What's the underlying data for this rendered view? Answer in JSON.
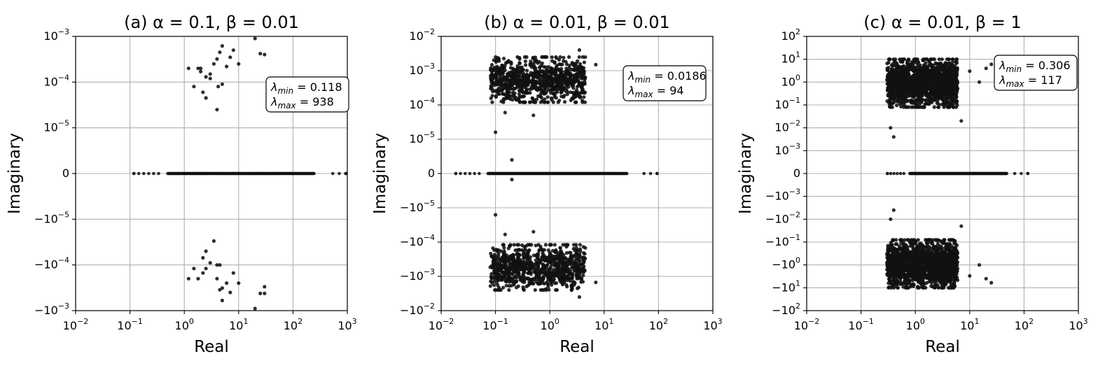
{
  "chart_data": [
    {
      "type": "scatter",
      "title": "(a)  α = 0.1, β = 0.01",
      "xlabel": "Real",
      "ylabel": "Imaginary",
      "x_scale": "log",
      "y_scale": "symlog",
      "xlim": [
        0.01,
        1000
      ],
      "ylim": [
        -0.001,
        0.001
      ],
      "x_ticks": [
        "10^-2",
        "10^-1",
        "10^0",
        "10^1",
        "10^2",
        "10^3"
      ],
      "y_ticks": [
        "10^-3",
        "10^-4",
        "10^-5",
        "0",
        "−10^-5",
        "−10^-4",
        "−10^-3"
      ],
      "grid": true,
      "annotation": {
        "position": "right",
        "lines": [
          [
            "λ",
            "min",
            " = 0.118"
          ],
          [
            "λ",
            "max",
            " = 938"
          ]
        ]
      },
      "lambda_min": 0.118,
      "lambda_max": 938,
      "real_axis_points": {
        "x_range": [
          0.118,
          938
        ],
        "y": 0
      },
      "points": [
        [
          1.2,
          0.0002
        ],
        [
          1.8,
          0.0002
        ],
        [
          2.0,
          0.00017
        ],
        [
          2.5,
          0.00013
        ],
        [
          3.0,
          0.00012
        ],
        [
          3.5,
          0.00025
        ],
        [
          4.0,
          0.00032
        ],
        [
          4.5,
          0.00045
        ],
        [
          5.0,
          0.00062
        ],
        [
          6.0,
          0.00022
        ],
        [
          8.0,
          0.0005
        ],
        [
          10.0,
          0.00025
        ],
        [
          20.0,
          0.0009
        ],
        [
          25.0,
          0.00042
        ],
        [
          30.0,
          0.0004
        ],
        [
          1.5,
          8e-05
        ],
        [
          2.2,
          6e-05
        ],
        [
          2.5,
          4.5e-05
        ],
        [
          4.0,
          2.5e-05
        ],
        [
          5.0,
          9e-05
        ],
        [
          3.0,
          0.00015
        ],
        [
          7.0,
          0.00035
        ],
        [
          2.0,
          0.0002
        ],
        [
          4.2,
          8e-05
        ],
        [
          1.2,
          -0.0002
        ],
        [
          1.5,
          -0.00012
        ],
        [
          1.8,
          -0.0002
        ],
        [
          2.2,
          -0.00015
        ],
        [
          2.5,
          -0.00012
        ],
        [
          2.2,
          -7e-05
        ],
        [
          3.0,
          -9e-05
        ],
        [
          3.5,
          -3e-05
        ],
        [
          4.0,
          -0.0001
        ],
        [
          4.5,
          -0.0001
        ],
        [
          4.0,
          -0.0002
        ],
        [
          5.0,
          -0.00032
        ],
        [
          5.0,
          -0.0006
        ],
        [
          6.0,
          -0.00025
        ],
        [
          7.0,
          -0.0004
        ],
        [
          8.0,
          -0.00015
        ],
        [
          10.0,
          -0.00025
        ],
        [
          20.0,
          -0.0009
        ],
        [
          25.0,
          -0.00042
        ],
        [
          30.0,
          -0.0003
        ],
        [
          30.0,
          -0.00042
        ],
        [
          2.5,
          -5e-05
        ],
        [
          4.5,
          -0.00035
        ]
      ]
    },
    {
      "type": "scatter",
      "title": "(b)  α = 0.01, β = 0.01",
      "xlabel": "Real",
      "ylabel": "Imaginary",
      "x_scale": "log",
      "y_scale": "symlog",
      "xlim": [
        0.01,
        1000
      ],
      "ylim": [
        -0.01,
        0.01
      ],
      "x_ticks": [
        "10^-2",
        "10^-1",
        "10^0",
        "10^1",
        "10^2",
        "10^3"
      ],
      "y_ticks": [
        "10^-2",
        "10^-3",
        "10^-4",
        "10^-5",
        "0",
        "−10^-5",
        "−10^-4",
        "−10^-3",
        "−10^-2"
      ],
      "grid": true,
      "annotation": {
        "position": "right",
        "lines": [
          [
            "λ",
            "min",
            " = 0.0186"
          ],
          [
            "λ",
            "max",
            " = 94"
          ]
        ]
      },
      "lambda_min": 0.0186,
      "lambda_max": 94,
      "real_axis_points": {
        "x_range": [
          0.0186,
          94
        ],
        "y": 0
      },
      "clusters": [
        {
          "n": 900,
          "x_range": [
            0.08,
            4.5
          ],
          "y_range": [
            0.00012,
            0.0025
          ],
          "sign": 1
        },
        {
          "n": 900,
          "x_range": [
            0.08,
            4.5
          ],
          "y_range": [
            -0.0025,
            -0.00012
          ],
          "sign": -1
        }
      ],
      "points": [
        [
          0.1,
          1.6e-05
        ],
        [
          0.2,
          2.5e-06
        ],
        [
          0.2,
          -1.5e-06
        ],
        [
          0.1,
          -1.6e-05
        ],
        [
          3.5,
          0.004
        ],
        [
          3.5,
          -0.004
        ],
        [
          7.0,
          0.0015
        ],
        [
          7.0,
          -0.0015
        ],
        [
          0.15,
          6e-05
        ],
        [
          0.15,
          -6e-05
        ],
        [
          0.5,
          5e-05
        ],
        [
          0.5,
          -5e-05
        ]
      ]
    },
    {
      "type": "scatter",
      "title": "(c)  α = 0.01, β = 1",
      "xlabel": "Real",
      "ylabel": "Imaginary",
      "x_scale": "log",
      "y_scale": "symlog",
      "xlim": [
        0.01,
        1000
      ],
      "ylim": [
        -100,
        100
      ],
      "x_ticks": [
        "10^-2",
        "10^-1",
        "10^0",
        "10^1",
        "10^2",
        "10^3"
      ],
      "y_ticks": [
        "10^2",
        "10^1",
        "10^0",
        "10^-1",
        "10^-2",
        "10^-3",
        "0",
        "−10^-3",
        "−10^-2",
        "−10^-1",
        "−10^0",
        "−10^1",
        "−10^2"
      ],
      "grid": true,
      "annotation": {
        "position": "right",
        "lines": [
          [
            "λ",
            "min",
            " = 0.306"
          ],
          [
            "λ",
            "max",
            " = 117"
          ]
        ]
      },
      "lambda_min": 0.306,
      "lambda_max": 117,
      "real_axis_points": {
        "x_range": [
          0.306,
          117
        ],
        "y": 0
      },
      "clusters": [
        {
          "n": 1600,
          "x_range": [
            0.3,
            6
          ],
          "y_range": [
            0.08,
            10
          ],
          "sign": 1
        },
        {
          "n": 1600,
          "x_range": [
            0.3,
            6
          ],
          "y_range": [
            -10,
            -0.08
          ],
          "sign": -1
        }
      ],
      "points": [
        [
          0.4,
          0.004
        ],
        [
          0.4,
          -0.004
        ],
        [
          0.35,
          0.01
        ],
        [
          0.35,
          -0.01
        ],
        [
          7.0,
          0.02
        ],
        [
          7.0,
          -0.02
        ],
        [
          15,
          1
        ],
        [
          15,
          -1
        ],
        [
          20,
          4
        ],
        [
          20,
          -4
        ],
        [
          25,
          6
        ],
        [
          25,
          -6
        ],
        [
          10,
          3
        ],
        [
          10,
          -3
        ]
      ]
    }
  ]
}
